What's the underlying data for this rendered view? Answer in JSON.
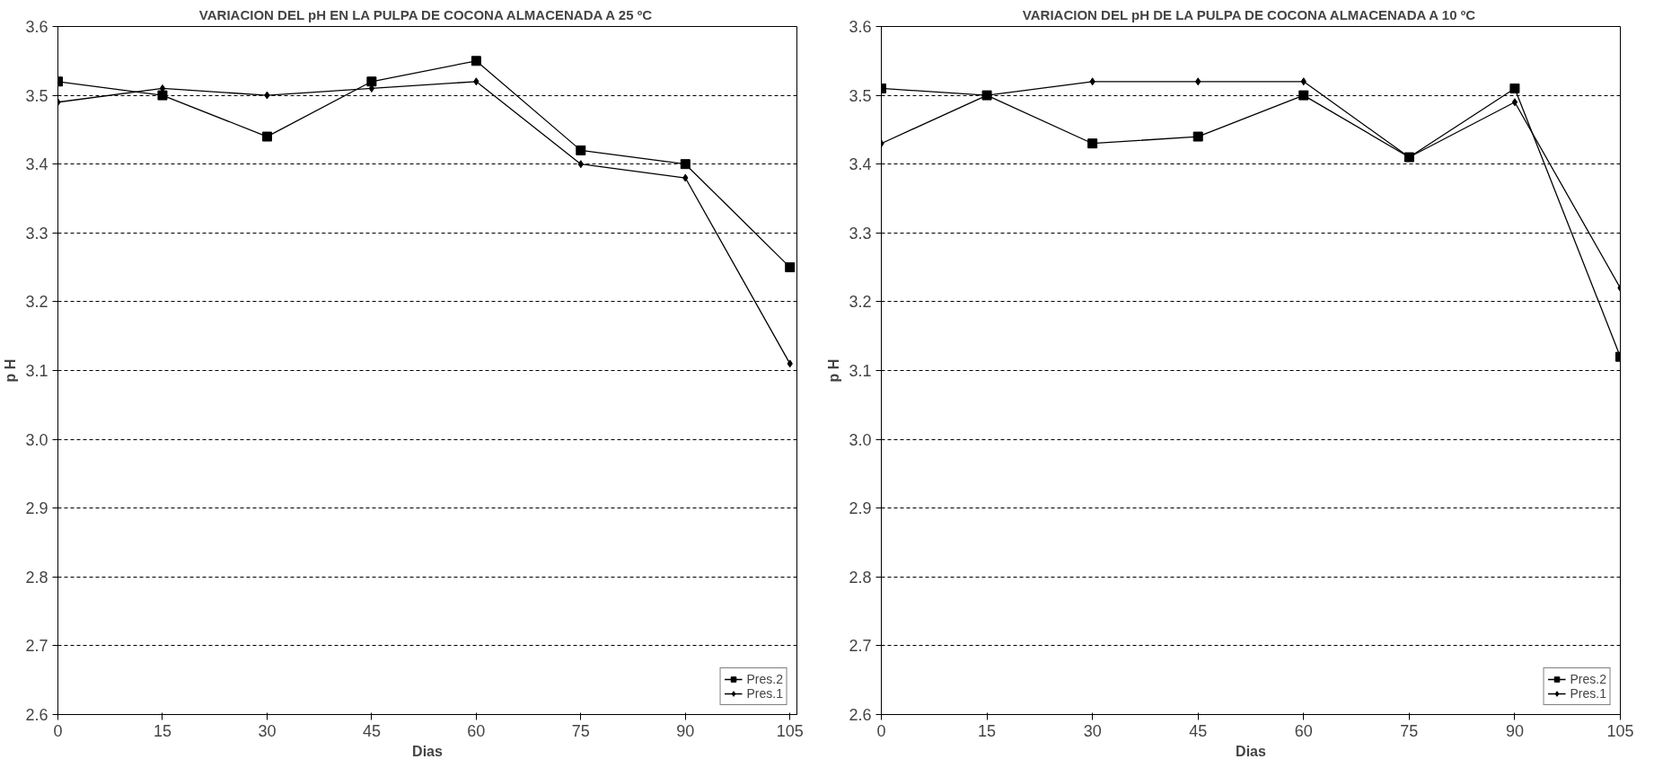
{
  "chart_data": [
    {
      "type": "line",
      "title": "VARIACION DEL pH EN LA PULPA DE COCONA ALMACENADA A 25 ºC",
      "xlabel": "Dias",
      "ylabel": "p H",
      "x": [
        0,
        15,
        30,
        45,
        60,
        75,
        90,
        105
      ],
      "xlim": [
        0,
        106
      ],
      "xticks": [
        0,
        15,
        30,
        45,
        60,
        75,
        90,
        105
      ],
      "ylim": [
        2.6,
        3.6
      ],
      "yticks": [
        {
          "value": 2.6,
          "label": "2.6"
        },
        {
          "value": 2.7,
          "label": "2.7"
        },
        {
          "value": 2.8,
          "label": "2.8"
        },
        {
          "value": 2.9,
          "label": "2.9"
        },
        {
          "value": 3.0,
          "label": "3.0"
        },
        {
          "value": 3.1,
          "label": "3.1"
        },
        {
          "value": 3.2,
          "label": "3.2"
        },
        {
          "value": 3.3,
          "label": "3.3"
        },
        {
          "value": 3.4,
          "label": "3.4"
        },
        {
          "value": 3.5,
          "label": "3.5"
        },
        {
          "value": 3.6,
          "label": "3.6"
        }
      ],
      "grid": "y",
      "legend": "bottom right",
      "line_style": "solid",
      "series": [
        {
          "name": "Pres.2",
          "color": "#000000",
          "marker": "square",
          "values": [
            3.52,
            3.5,
            3.44,
            3.52,
            3.55,
            3.42,
            3.4,
            3.25
          ]
        },
        {
          "name": "Pres.1",
          "color": "#000000",
          "marker": "diamond",
          "values": [
            3.49,
            3.51,
            3.5,
            3.51,
            3.52,
            3.4,
            3.38,
            3.11
          ]
        }
      ]
    },
    {
      "type": "line",
      "title": "VARIACION DEL pH DE LA PULPA DE COCONA ALMACENADA A 10 ºC",
      "xlabel": "Dias",
      "ylabel": "p H",
      "x": [
        0,
        15,
        30,
        45,
        60,
        75,
        90,
        105
      ],
      "xlim": [
        0,
        105
      ],
      "xticks": [
        0,
        15,
        30,
        45,
        60,
        75,
        90,
        105
      ],
      "ylim": [
        2.6,
        3.6
      ],
      "yticks": [
        {
          "value": 2.6,
          "label": "2.6"
        },
        {
          "value": 2.7,
          "label": "2.7"
        },
        {
          "value": 2.8,
          "label": "2.8"
        },
        {
          "value": 2.9,
          "label": "2.9"
        },
        {
          "value": 3.0,
          "label": "3.0"
        },
        {
          "value": 3.1,
          "label": "3.1"
        },
        {
          "value": 3.2,
          "label": "3.2"
        },
        {
          "value": 3.3,
          "label": "3.3"
        },
        {
          "value": 3.4,
          "label": "3.4"
        },
        {
          "value": 3.5,
          "label": "3.5"
        },
        {
          "value": 3.6,
          "label": "3.6"
        }
      ],
      "grid": "y",
      "legend": "bottom right",
      "line_style": "solid",
      "series": [
        {
          "name": "Pres.2",
          "color": "#000000",
          "marker": "square",
          "values": [
            3.51,
            3.5,
            3.43,
            3.44,
            3.5,
            3.41,
            3.51,
            3.12
          ]
        },
        {
          "name": "Pres.1",
          "color": "#000000",
          "marker": "diamond",
          "values": [
            3.43,
            3.5,
            3.52,
            3.52,
            3.52,
            3.41,
            3.49,
            3.22
          ]
        }
      ]
    }
  ]
}
